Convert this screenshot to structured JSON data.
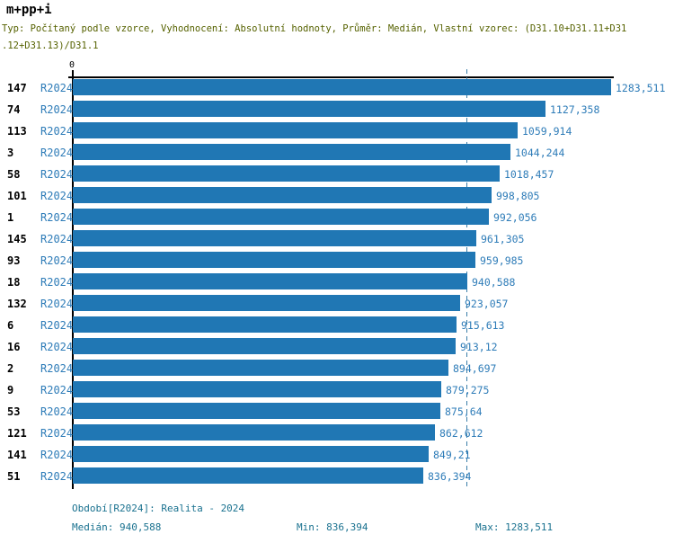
{
  "colors": {
    "bar": "#2077b4",
    "blue-text": "#2e7cb8",
    "teal-text": "#19718f",
    "olive-text": "#566200",
    "median-line": "#3a7ea8",
    "axis": "#000000"
  },
  "header": {
    "title": "m+pp+i",
    "subtitle_line1": "Typ: Počítaný podle vzorce, Vyhodnocení: Absolutní hodnoty, Průměr: Medián, Vlastní vzorec: (D31.10+D31.11+D31",
    "subtitle_line2": ".12+D31.13)/D31.1"
  },
  "chart_data": {
    "type": "bar",
    "orientation": "horizontal",
    "axis_origin_label": "0",
    "xlim": [
      0,
      1283.511
    ],
    "grid": "median-dashed-line-only",
    "series_label": "R2024",
    "median_value": 940.588,
    "rows": [
      {
        "id": "147",
        "period": "R2024",
        "value": 1283.511,
        "label": "1283,511"
      },
      {
        "id": "74",
        "period": "R2024",
        "value": 1127.358,
        "label": "1127,358"
      },
      {
        "id": "113",
        "period": "R2024",
        "value": 1059.914,
        "label": "1059,914"
      },
      {
        "id": "3",
        "period": "R2024",
        "value": 1044.244,
        "label": "1044,244"
      },
      {
        "id": "58",
        "period": "R2024",
        "value": 1018.457,
        "label": "1018,457"
      },
      {
        "id": "101",
        "period": "R2024",
        "value": 998.805,
        "label": "998,805"
      },
      {
        "id": "1",
        "period": "R2024",
        "value": 992.056,
        "label": "992,056"
      },
      {
        "id": "145",
        "period": "R2024",
        "value": 961.305,
        "label": "961,305"
      },
      {
        "id": "93",
        "period": "R2024",
        "value": 959.985,
        "label": "959,985"
      },
      {
        "id": "18",
        "period": "R2024",
        "value": 940.588,
        "label": "940,588"
      },
      {
        "id": "132",
        "period": "R2024",
        "value": 923.057,
        "label": "923,057"
      },
      {
        "id": "6",
        "period": "R2024",
        "value": 915.613,
        "label": "915,613"
      },
      {
        "id": "16",
        "period": "R2024",
        "value": 913.12,
        "label": "913,12"
      },
      {
        "id": "2",
        "period": "R2024",
        "value": 894.697,
        "label": "894,697"
      },
      {
        "id": "9",
        "period": "R2024",
        "value": 879.275,
        "label": "879,275"
      },
      {
        "id": "53",
        "period": "R2024",
        "value": 875.64,
        "label": "875,64"
      },
      {
        "id": "121",
        "period": "R2024",
        "value": 862.612,
        "label": "862,612"
      },
      {
        "id": "141",
        "period": "R2024",
        "value": 849.21,
        "label": "849,21"
      },
      {
        "id": "51",
        "period": "R2024",
        "value": 836.394,
        "label": "836,394"
      }
    ]
  },
  "footer": {
    "period_line": "Období[R2024]: Realita - 2024",
    "median_label": "Medián: 940,588",
    "min_label": "Min: 836,394",
    "max_label": "Max: 1283,511"
  }
}
